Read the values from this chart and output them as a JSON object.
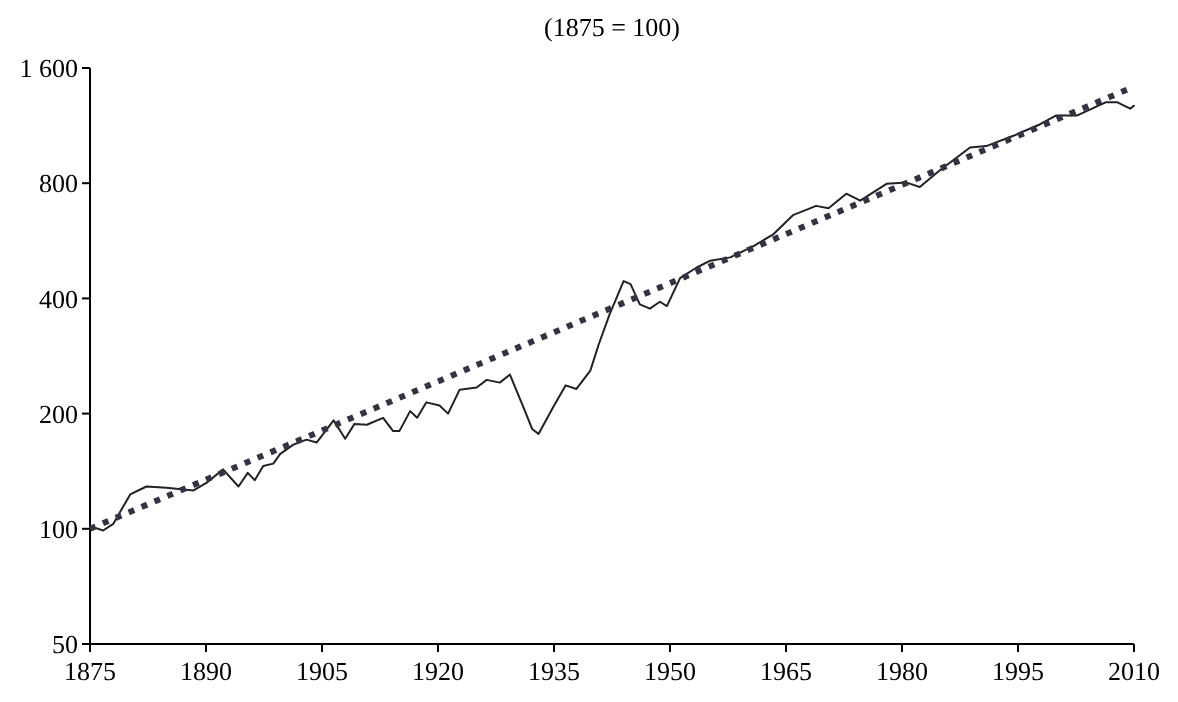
{
  "chart_data": {
    "type": "line",
    "title": "(1875 = 100)",
    "log": "y",
    "xlim": [
      1875,
      2010
    ],
    "xticks": [
      1875,
      1890,
      1905,
      1920,
      1935,
      1950,
      1965,
      1980,
      1995,
      2010
    ],
    "ylim": [
      50,
      1600
    ],
    "yticks": [
      50,
      100,
      200,
      400,
      800,
      {
        "value": 1600,
        "label": "1 600"
      }
    ],
    "grid": false,
    "marker": "none",
    "series": [
      {
        "color": "#222222",
        "line_style": "solid",
        "x": [
          1875.4,
          1876.7,
          1878,
          1880.2,
          1882.3,
          1884.9,
          1888.4,
          1890.1,
          1892.2,
          1894.2,
          1895.4,
          1896.3,
          1897.4,
          1898.7,
          1899.6,
          1901.3,
          1903,
          1904.3,
          1906.5,
          1908,
          1909.2,
          1910.8,
          1912.9,
          1914.2,
          1915,
          1916.4,
          1917.3,
          1918.5,
          1920.2,
          1921.3,
          1922.8,
          1925,
          1926.3,
          1928,
          1929.3,
          1931,
          1932.2,
          1933,
          1934.9,
          1936.5,
          1937.9,
          1939.7,
          1940.8,
          1942.2,
          1944,
          1944.9,
          1946.1,
          1947.4,
          1948.7,
          1949.6,
          1951.3,
          1953.4,
          1955.2,
          1957.8,
          1960.8,
          1963.4,
          1965.9,
          1968.9,
          1970.5,
          1972.8,
          1974.6,
          1978,
          1980.6,
          1982.3,
          1984.9,
          1988.8,
          1990.9,
          1994.4,
          1997.8,
          1999.9,
          2002.6,
          2006.4,
          2007.8,
          2009.5,
          2010
        ],
        "values": [
          101,
          99,
          103,
          123,
          129,
          128,
          126,
          132,
          143,
          129,
          140,
          134,
          146,
          148,
          157,
          166,
          171,
          168,
          192,
          172,
          188,
          187,
          195,
          180,
          180,
          203,
          195,
          214,
          210,
          200,
          231,
          234,
          245,
          241,
          253,
          209,
          182,
          177,
          208,
          237,
          232,
          259,
          304,
          364,
          444,
          436,
          386,
          376,
          392,
          382,
          452,
          481,
          502,
          512,
          548,
          589,
          660,
          698,
          688,
          751,
          720,
          797,
          803,
          782,
          865,
          992,
          1000,
          1064,
          1139,
          1202,
          1202,
          1303,
          1303,
          1253,
          1275
        ]
      },
      {
        "type": "line",
        "color": "#333344",
        "line_style": "dotted",
        "x": [
          1875,
          2010
        ],
        "values": [
          100,
          1430
        ]
      }
    ]
  }
}
